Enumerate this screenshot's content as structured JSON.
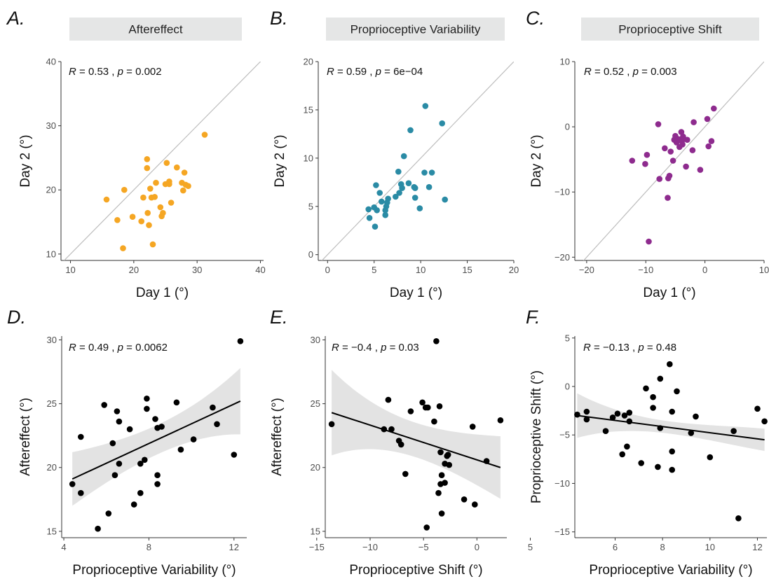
{
  "chart_data": [
    {
      "type": "scatter",
      "panel_label": "A.",
      "title": "Aftereffect",
      "xlabel": "Day 1 (°)",
      "ylabel": "Day 2 (°)",
      "xlim": [
        8.5,
        40.5
      ],
      "ylim": [
        9.0,
        40.0
      ],
      "xticks": [
        10,
        20,
        30,
        40
      ],
      "yticks": [
        10,
        20,
        30,
        40
      ],
      "stat_r": "0.53",
      "stat_p": "0.002",
      "identity_line": true,
      "regression": null,
      "point_color": "#f5a623",
      "points": [
        [
          15.7,
          18.5
        ],
        [
          17.4,
          15.3
        ],
        [
          18.5,
          20.0
        ],
        [
          18.3,
          10.9
        ],
        [
          19.8,
          15.8
        ],
        [
          21.2,
          15.1
        ],
        [
          21.5,
          18.8
        ],
        [
          22.1,
          24.8
        ],
        [
          22.1,
          23.4
        ],
        [
          22.2,
          16.4
        ],
        [
          22.4,
          14.5
        ],
        [
          22.6,
          20.2
        ],
        [
          22.8,
          18.8
        ],
        [
          23.0,
          11.5
        ],
        [
          23.3,
          18.9
        ],
        [
          23.5,
          21.1
        ],
        [
          24.2,
          17.3
        ],
        [
          24.4,
          15.9
        ],
        [
          24.6,
          16.4
        ],
        [
          25.0,
          20.9
        ],
        [
          25.2,
          24.2
        ],
        [
          25.6,
          21.3
        ],
        [
          25.6,
          20.9
        ],
        [
          25.9,
          18.0
        ],
        [
          26.8,
          23.5
        ],
        [
          27.6,
          21.1
        ],
        [
          27.8,
          19.9
        ],
        [
          28.0,
          22.7
        ],
        [
          28.2,
          20.8
        ],
        [
          28.6,
          20.6
        ],
        [
          31.2,
          28.6
        ]
      ]
    },
    {
      "type": "scatter",
      "panel_label": "B.",
      "title": "Proprioceptive Variability",
      "xlabel": "Day 1 (°)",
      "ylabel": "Day 2 (°)",
      "xlim": [
        -1.0,
        20.0
      ],
      "ylim": [
        -0.6,
        20.0
      ],
      "xticks": [
        0,
        5,
        10,
        15,
        20
      ],
      "yticks": [
        0,
        5,
        10,
        15,
        20
      ],
      "stat_r": "0.59",
      "stat_p": "6e−04",
      "identity_line": true,
      "regression": null,
      "point_color": "#2a8ba5",
      "points": [
        [
          4.4,
          4.7
        ],
        [
          4.5,
          3.8
        ],
        [
          5.0,
          4.9
        ],
        [
          5.1,
          2.9
        ],
        [
          5.3,
          4.6
        ],
        [
          5.2,
          7.2
        ],
        [
          5.6,
          6.4
        ],
        [
          5.8,
          5.5
        ],
        [
          6.2,
          4.6
        ],
        [
          6.2,
          4.1
        ],
        [
          6.4,
          5.4
        ],
        [
          6.5,
          5.8
        ],
        [
          6.3,
          5.0
        ],
        [
          7.3,
          6.0
        ],
        [
          7.6,
          8.6
        ],
        [
          7.7,
          6.4
        ],
        [
          7.9,
          7.3
        ],
        [
          8.0,
          6.9
        ],
        [
          8.2,
          10.2
        ],
        [
          8.7,
          7.4
        ],
        [
          8.9,
          12.9
        ],
        [
          9.3,
          7.0
        ],
        [
          9.4,
          6.9
        ],
        [
          9.4,
          5.9
        ],
        [
          9.9,
          4.8
        ],
        [
          10.4,
          8.5
        ],
        [
          10.5,
          15.4
        ],
        [
          10.9,
          7.0
        ],
        [
          11.2,
          8.5
        ],
        [
          12.3,
          13.6
        ],
        [
          12.6,
          5.7
        ]
      ]
    },
    {
      "type": "scatter",
      "panel_label": "C.",
      "title": "Proprioceptive Shift",
      "xlabel": "Day 1 (°)",
      "ylabel": "Day 2 (°)",
      "xlim": [
        -22.0,
        10.0
      ],
      "ylim": [
        -20.5,
        10.0
      ],
      "xticks": [
        -20,
        -10,
        0,
        10
      ],
      "yticks": [
        -20,
        -10,
        0,
        10
      ],
      "stat_r": "0.52",
      "stat_p": "0.003",
      "identity_line": true,
      "regression": null,
      "point_color": "#8e2b8e",
      "points": [
        [
          -12.3,
          -5.2
        ],
        [
          -10.1,
          -5.7
        ],
        [
          -9.8,
          -4.3
        ],
        [
          -9.5,
          -17.6
        ],
        [
          -7.9,
          0.4
        ],
        [
          -7.7,
          -8.0
        ],
        [
          -6.8,
          -3.3
        ],
        [
          -6.3,
          -10.9
        ],
        [
          -6.2,
          -7.9
        ],
        [
          -6.0,
          -7.5
        ],
        [
          -5.8,
          -3.8
        ],
        [
          -5.2,
          -2.0
        ],
        [
          -5.0,
          -1.4
        ],
        [
          -4.8,
          -2.4
        ],
        [
          -4.5,
          -1.9
        ],
        [
          -4.3,
          -3.1
        ],
        [
          -4.0,
          -0.8
        ],
        [
          -3.9,
          -2.2
        ],
        [
          -3.8,
          -2.7
        ],
        [
          -3.7,
          -1.5
        ],
        [
          -3.2,
          -6.1
        ],
        [
          -3.0,
          -2.0
        ],
        [
          -2.1,
          -3.6
        ],
        [
          -1.9,
          0.7
        ],
        [
          -0.8,
          -6.6
        ],
        [
          0.4,
          1.2
        ],
        [
          0.6,
          -3.0
        ],
        [
          1.1,
          -2.2
        ],
        [
          1.5,
          2.8
        ],
        [
          -5.4,
          -5.2
        ]
      ]
    },
    {
      "type": "scatter",
      "panel_label": "D.",
      "title": "",
      "xlabel": "Proprioceptive Variability (°)",
      "ylabel": "Aftereffect (°)",
      "xlim": [
        3.9,
        12.6
      ],
      "ylim": [
        14.5,
        30.3
      ],
      "xticks": [
        4,
        8,
        12
      ],
      "yticks": [
        15,
        20,
        25,
        30
      ],
      "stat_r": "0.49",
      "stat_p": "0.0062",
      "identity_line": false,
      "regression": {
        "x": [
          4.4,
          12.3
        ],
        "y": [
          19.1,
          25.2
        ],
        "ci_lower": [
          16.9,
          22.6
        ],
        "ci_upper": [
          21.1,
          27.8
        ]
      },
      "point_color": "#000000",
      "points": [
        [
          4.4,
          18.7
        ],
        [
          4.8,
          22.4
        ],
        [
          4.8,
          18.0
        ],
        [
          5.6,
          15.2
        ],
        [
          5.9,
          24.9
        ],
        [
          6.1,
          16.4
        ],
        [
          6.3,
          21.9
        ],
        [
          6.4,
          19.4
        ],
        [
          6.5,
          24.4
        ],
        [
          6.6,
          20.3
        ],
        [
          6.6,
          23.6
        ],
        [
          7.1,
          23.0
        ],
        [
          7.3,
          17.1
        ],
        [
          7.6,
          20.3
        ],
        [
          7.6,
          18.0
        ],
        [
          7.8,
          20.6
        ],
        [
          7.9,
          24.6
        ],
        [
          7.9,
          25.4
        ],
        [
          8.3,
          23.8
        ],
        [
          8.4,
          23.1
        ],
        [
          8.4,
          18.7
        ],
        [
          8.6,
          23.2
        ],
        [
          8.4,
          19.4
        ],
        [
          9.3,
          25.1
        ],
        [
          9.5,
          21.4
        ],
        [
          10.1,
          22.2
        ],
        [
          11.0,
          24.7
        ],
        [
          11.2,
          23.4
        ],
        [
          12.0,
          21.0
        ],
        [
          12.3,
          29.9
        ]
      ]
    },
    {
      "type": "scatter",
      "panel_label": "E.",
      "title": "",
      "xlabel": "Proprioceptive Shift (°)",
      "ylabel": "Aftereffect (°)",
      "xlim": [
        -14.2,
        2.8
      ],
      "ylim": [
        14.5,
        30.3
      ],
      "xticks": [
        -15,
        -10,
        -5,
        0,
        5
      ],
      "yticks": [
        15,
        20,
        25,
        30
      ],
      "stat_r": "−0.4",
      "stat_p": "0.03",
      "identity_line": false,
      "regression": {
        "x": [
          -13.6,
          2.2
        ],
        "y": [
          24.3,
          20.0
        ],
        "ci_lower": [
          21.4,
          17.6
        ],
        "ci_upper": [
          28.1,
          22.5
        ]
      },
      "point_color": "#000000",
      "points": [
        [
          -13.6,
          23.4
        ],
        [
          -8.7,
          23.0
        ],
        [
          -8.3,
          25.3
        ],
        [
          -8.0,
          23.0
        ],
        [
          -7.3,
          22.1
        ],
        [
          -7.1,
          21.8
        ],
        [
          -6.7,
          19.5
        ],
        [
          -6.2,
          24.4
        ],
        [
          -5.1,
          25.1
        ],
        [
          -4.8,
          24.7
        ],
        [
          -4.7,
          15.3
        ],
        [
          -4.6,
          24.7
        ],
        [
          -4.0,
          23.6
        ],
        [
          -3.8,
          29.9
        ],
        [
          -3.6,
          18.0
        ],
        [
          -3.5,
          24.8
        ],
        [
          -3.4,
          21.2
        ],
        [
          -3.4,
          18.7
        ],
        [
          -3.3,
          16.4
        ],
        [
          -3.3,
          19.4
        ],
        [
          -3.0,
          18.8
        ],
        [
          -3.0,
          20.3
        ],
        [
          -2.8,
          20.9
        ],
        [
          -2.7,
          21.0
        ],
        [
          -2.6,
          20.2
        ],
        [
          -1.2,
          17.5
        ],
        [
          -0.4,
          23.2
        ],
        [
          -0.2,
          17.1
        ],
        [
          0.9,
          20.5
        ],
        [
          2.2,
          23.7
        ]
      ]
    },
    {
      "type": "scatter",
      "panel_label": "F.",
      "title": "",
      "xlabel": "Proprioceptive Variability (°)",
      "ylabel": "Proprioceptive Shift (°)",
      "xlim": [
        4.3,
        12.4
      ],
      "ylim": [
        -15.6,
        5.2
      ],
      "xticks": [
        6,
        8,
        10,
        12
      ],
      "yticks": [
        -15,
        -10,
        -5,
        0,
        5
      ],
      "stat_r": "−0.13",
      "stat_p": "0.48",
      "identity_line": false,
      "regression": {
        "x": [
          4.4,
          12.3
        ],
        "y": [
          -3.0,
          -5.5
        ],
        "ci_lower": [
          -5.3,
          -6.6
        ],
        "ci_upper": [
          -0.7,
          -4.3
        ]
      },
      "point_color": "#000000",
      "points": [
        [
          4.4,
          -2.9
        ],
        [
          4.8,
          -3.4
        ],
        [
          4.8,
          -2.6
        ],
        [
          5.6,
          -4.6
        ],
        [
          5.9,
          -3.2
        ],
        [
          6.1,
          -2.8
        ],
        [
          6.3,
          -7.0
        ],
        [
          6.4,
          -3.0
        ],
        [
          6.5,
          -6.2
        ],
        [
          6.6,
          -2.7
        ],
        [
          6.6,
          -3.6
        ],
        [
          7.1,
          -7.9
        ],
        [
          7.3,
          -0.2
        ],
        [
          7.6,
          -2.2
        ],
        [
          7.6,
          -1.1
        ],
        [
          7.8,
          -8.3
        ],
        [
          7.9,
          -4.3
        ],
        [
          7.9,
          0.8
        ],
        [
          8.3,
          2.3
        ],
        [
          8.4,
          -2.6
        ],
        [
          8.4,
          -6.7
        ],
        [
          8.4,
          -8.6
        ],
        [
          8.6,
          -0.5
        ],
        [
          9.2,
          -4.8
        ],
        [
          9.4,
          -3.1
        ],
        [
          10.0,
          -7.3
        ],
        [
          11.0,
          -4.6
        ],
        [
          11.2,
          -13.6
        ],
        [
          12.0,
          -2.3
        ],
        [
          12.3,
          -3.6
        ]
      ]
    }
  ]
}
